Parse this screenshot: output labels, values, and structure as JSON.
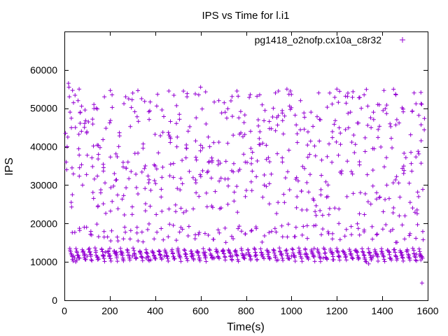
{
  "chart_data": {
    "type": "scatter",
    "title": "IPS vs Time for l.i1",
    "xlabel": "Time(s)",
    "ylabel": "IPS",
    "xlim": [
      0,
      1600
    ],
    "ylim": [
      0,
      70000
    ],
    "xticks": [
      0,
      200,
      400,
      600,
      800,
      1000,
      1200,
      1400,
      1600
    ],
    "yticks": [
      0,
      10000,
      20000,
      30000,
      40000,
      50000,
      60000
    ],
    "grid": false,
    "legend_position": "top-right",
    "marker": "plus",
    "series": [
      {
        "name": "pg1418_o2nofp.cx10a_c8r32",
        "color": "#9400d3",
        "clusters": [
          {
            "x_range": [
              0,
              1570
            ],
            "y_range": [
              9500,
              14000
            ],
            "density": "very high"
          },
          {
            "x_range": [
              0,
              1570
            ],
            "y_range": [
              14000,
              20000
            ],
            "density": "medium"
          },
          {
            "x_range": [
              0,
              1570
            ],
            "y_range": [
              20000,
              55000
            ],
            "density": "medium"
          }
        ],
        "points": [
          [
            5,
            43500
          ],
          [
            8,
            36000
          ],
          [
            10,
            34000
          ],
          [
            12,
            40000
          ],
          [
            15,
            42500
          ],
          [
            18,
            56500
          ],
          [
            20,
            55500
          ],
          [
            22,
            53000
          ],
          [
            25,
            49000
          ],
          [
            30,
            25500
          ],
          [
            35,
            27500
          ],
          [
            40,
            11500
          ],
          [
            45,
            11000
          ],
          [
            50,
            10000
          ],
          [
            55,
            10500
          ],
          [
            60,
            52000
          ],
          [
            65,
            55000
          ],
          [
            70,
            49000
          ],
          [
            75,
            44000
          ],
          [
            80,
            30000
          ],
          [
            90,
            12000
          ],
          [
            100,
            11500
          ],
          [
            110,
            13500
          ],
          [
            120,
            17000
          ],
          [
            130,
            51000
          ],
          [
            140,
            50000
          ],
          [
            150,
            38000
          ],
          [
            160,
            28000
          ],
          [
            170,
            11500
          ],
          [
            180,
            12500
          ],
          [
            190,
            16500
          ],
          [
            200,
            13500
          ],
          [
            210,
            53500
          ],
          [
            220,
            33000
          ],
          [
            230,
            12500
          ],
          [
            250,
            12000
          ],
          [
            260,
            16000
          ],
          [
            270,
            53000
          ],
          [
            280,
            36000
          ],
          [
            300,
            11500
          ],
          [
            320,
            19000
          ],
          [
            340,
            52500
          ],
          [
            360,
            11000
          ],
          [
            380,
            10500
          ],
          [
            400,
            35000
          ],
          [
            420,
            12000
          ],
          [
            440,
            11500
          ],
          [
            460,
            54500
          ],
          [
            480,
            32000
          ],
          [
            500,
            13500
          ],
          [
            520,
            18500
          ],
          [
            540,
            53000
          ],
          [
            560,
            11500
          ],
          [
            580,
            28000
          ],
          [
            600,
            55500
          ],
          [
            620,
            12500
          ],
          [
            640,
            40000
          ],
          [
            660,
            11000
          ],
          [
            680,
            52000
          ],
          [
            700,
            13000
          ],
          [
            720,
            25000
          ],
          [
            740,
            11500
          ],
          [
            760,
            54500
          ],
          [
            780,
            18000
          ],
          [
            800,
            12000
          ],
          [
            820,
            44000
          ],
          [
            840,
            11500
          ],
          [
            860,
            53500
          ],
          [
            880,
            30000
          ],
          [
            900,
            12500
          ],
          [
            920,
            50000
          ],
          [
            940,
            10500
          ],
          [
            960,
            36000
          ],
          [
            980,
            55000
          ],
          [
            1000,
            11500
          ],
          [
            1020,
            19000
          ],
          [
            1040,
            52000
          ],
          [
            1060,
            12000
          ],
          [
            1080,
            38000
          ],
          [
            1100,
            13500
          ],
          [
            1120,
            54000
          ],
          [
            1140,
            11000
          ],
          [
            1160,
            27000
          ],
          [
            1180,
            12500
          ],
          [
            1200,
            55000
          ],
          [
            1220,
            33000
          ],
          [
            1240,
            11500
          ],
          [
            1260,
            49000
          ],
          [
            1280,
            13000
          ],
          [
            1300,
            17000
          ],
          [
            1320,
            53500
          ],
          [
            1330,
            10000
          ],
          [
            1340,
            9500
          ],
          [
            1360,
            11500
          ],
          [
            1380,
            51000
          ],
          [
            1400,
            12000
          ],
          [
            1420,
            30000
          ],
          [
            1440,
            10500
          ],
          [
            1460,
            53500
          ],
          [
            1480,
            12500
          ],
          [
            1500,
            22000
          ],
          [
            1520,
            11000
          ],
          [
            1540,
            54000
          ],
          [
            1550,
            12000
          ],
          [
            1560,
            27000
          ],
          [
            1565,
            11500
          ],
          [
            1570,
            10500
          ],
          [
            1575,
            4500
          ]
        ]
      }
    ]
  }
}
